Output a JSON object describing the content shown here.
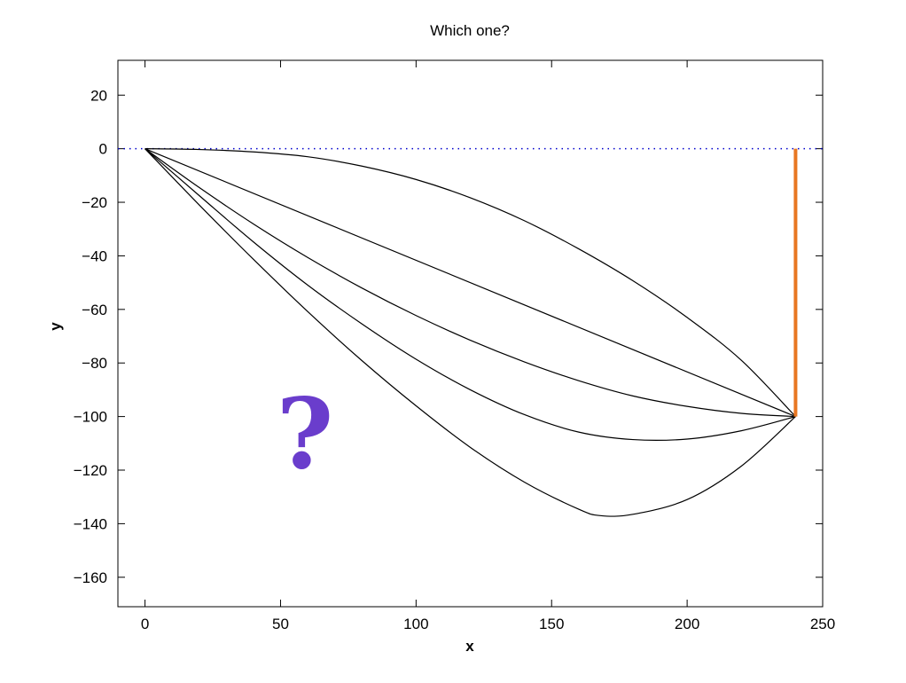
{
  "chart_data": {
    "type": "line",
    "title": "Which one?",
    "xlabel": "x",
    "ylabel": "y",
    "xlim": [
      -10,
      250
    ],
    "ylim": [
      -171,
      33
    ],
    "xticks": [
      0,
      50,
      100,
      150,
      200,
      250
    ],
    "yticks": [
      20,
      0,
      -20,
      -40,
      -60,
      -80,
      -100,
      -120,
      -140,
      -160
    ],
    "xtick_labels": [
      "0",
      "50",
      "100",
      "150",
      "200",
      "250"
    ],
    "ytick_labels": [
      "20",
      "0",
      "−20",
      "−40",
      "−60",
      "−80",
      "−100",
      "−120",
      "−140",
      "−160"
    ],
    "grid": false,
    "series": [
      {
        "color": "#000000",
        "x": [
          0,
          20,
          40,
          60,
          80,
          100,
          120,
          140,
          160,
          180,
          200,
          220,
          240
        ],
        "y": [
          0,
          -0.3,
          -1.2,
          -3.0,
          -6.5,
          -11.5,
          -18.3,
          -26.9,
          -37.4,
          -49.3,
          -63.0,
          -79.0,
          -100
        ]
      },
      {
        "color": "#000000",
        "x": [
          0,
          240
        ],
        "y": [
          0,
          -100
        ]
      },
      {
        "color": "#000000",
        "x": [
          0,
          20,
          40,
          60,
          80,
          100,
          120,
          140,
          160,
          180,
          200,
          220,
          240
        ],
        "y": [
          0,
          -14.5,
          -28.1,
          -40.6,
          -52.0,
          -62.3,
          -71.5,
          -79.6,
          -86.6,
          -92.3,
          -96.2,
          -98.8,
          -100
        ]
      },
      {
        "color": "#000000",
        "x": [
          0,
          20,
          40,
          60,
          80,
          100,
          120,
          140,
          160,
          180,
          200,
          220,
          240
        ],
        "y": [
          0,
          -17.5,
          -34.8,
          -50.9,
          -65.4,
          -78.6,
          -90.0,
          -99.3,
          -105.8,
          -108.6,
          -108.4,
          -105.3,
          -100
        ]
      },
      {
        "color": "#000000",
        "x": [
          0,
          20,
          40,
          60,
          80,
          100,
          120,
          140,
          160,
          168,
          180,
          200,
          220,
          240
        ],
        "y": [
          0,
          -21.0,
          -41.3,
          -60.8,
          -79.1,
          -96.0,
          -111.5,
          -124.5,
          -134.6,
          -137.0,
          -136.5,
          -131.0,
          -118.5,
          -100
        ]
      }
    ],
    "reference_line": {
      "color": "#0000cc",
      "style": "dotted",
      "y": 0,
      "x": [
        -10,
        250
      ]
    },
    "vertical_drop": {
      "color": "#e87722",
      "x": 240,
      "y": [
        0,
        -100
      ]
    },
    "annotation": {
      "text": "?",
      "color": "#6a3dcc",
      "x": 59,
      "y": -106
    }
  }
}
